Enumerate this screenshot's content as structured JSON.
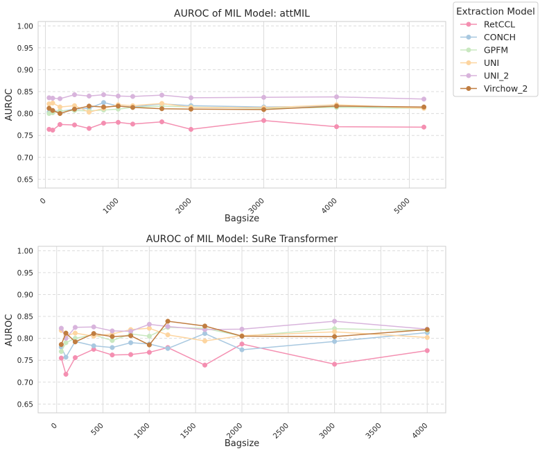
{
  "chart_data": [
    {
      "type": "line",
      "title": "AUROC of MIL Model: attMIL",
      "xlabel": "Bagsize",
      "ylabel": "AUROC",
      "xlim": [
        -100,
        5500
      ],
      "ylim": [
        0.63,
        1.01
      ],
      "xticks": [
        0,
        1000,
        2000,
        3000,
        4000,
        5000
      ],
      "xtick_labels": [
        "0",
        "1000",
        "2000",
        "3000",
        "4000",
        "5000"
      ],
      "yticks": [
        0.65,
        0.7,
        0.75,
        0.8,
        0.85,
        0.9,
        0.95,
        1.0
      ],
      "ytick_labels": [
        "0.65",
        "0.70",
        "0.75",
        "0.80",
        "0.85",
        "0.90",
        "0.95",
        "1.00"
      ],
      "grid": true,
      "series": [
        {
          "name": "RetCCL",
          "color": "#f48fb1",
          "x": [
            50,
            100,
            200,
            400,
            600,
            800,
            1000,
            1200,
            1600,
            2000,
            3000,
            4000,
            5200
          ],
          "y": [
            0.764,
            0.762,
            0.775,
            0.774,
            0.766,
            0.778,
            0.78,
            0.776,
            0.781,
            0.764,
            0.784,
            0.77,
            0.769
          ]
        },
        {
          "name": "CONCH",
          "color": "#a8c8e0",
          "x": [
            50,
            100,
            200,
            400,
            600,
            800,
            1000,
            1200,
            1600,
            2000,
            3000,
            4000,
            5200
          ],
          "y": [
            0.803,
            0.806,
            0.805,
            0.81,
            0.812,
            0.825,
            0.817,
            0.815,
            0.822,
            0.818,
            0.815,
            0.817,
            0.814
          ]
        },
        {
          "name": "GPFM",
          "color": "#c9e8c0",
          "x": [
            50,
            100,
            200,
            400,
            600,
            800,
            1000,
            1200,
            1600,
            2000,
            3000,
            4000,
            5200
          ],
          "y": [
            0.8,
            0.802,
            0.806,
            0.807,
            0.806,
            0.808,
            0.81,
            0.814,
            0.817,
            0.815,
            0.812,
            0.814,
            0.812
          ]
        },
        {
          "name": "UNI",
          "color": "#fdd5a0",
          "x": [
            50,
            100,
            200,
            400,
            600,
            800,
            1000,
            1200,
            1600,
            2000,
            3000,
            4000,
            5200
          ],
          "y": [
            0.822,
            0.824,
            0.815,
            0.818,
            0.803,
            0.812,
            0.82,
            0.818,
            0.823,
            0.814,
            0.813,
            0.82,
            0.812
          ]
        },
        {
          "name": "UNI_2",
          "color": "#d8b4dc",
          "x": [
            50,
            100,
            200,
            400,
            600,
            800,
            1000,
            1200,
            1600,
            2000,
            3000,
            4000,
            5200
          ],
          "y": [
            0.836,
            0.835,
            0.834,
            0.843,
            0.84,
            0.843,
            0.84,
            0.839,
            0.842,
            0.836,
            0.837,
            0.838,
            0.833
          ]
        },
        {
          "name": "Virchow_2",
          "color": "#c07d40",
          "x": [
            50,
            100,
            200,
            400,
            600,
            800,
            1000,
            1200,
            1600,
            2000,
            3000,
            4000,
            5200
          ],
          "y": [
            0.812,
            0.807,
            0.8,
            0.81,
            0.817,
            0.815,
            0.817,
            0.814,
            0.811,
            0.81,
            0.809,
            0.817,
            0.815
          ]
        }
      ]
    },
    {
      "type": "line",
      "title": "AUROC of MIL Model: SuRe Transformer",
      "xlabel": "Bagsize",
      "ylabel": "AUROC",
      "xlim": [
        -200,
        4200
      ],
      "ylim": [
        0.63,
        1.01
      ],
      "xticks": [
        0,
        500,
        1000,
        1500,
        2000,
        2500,
        3000,
        3500,
        4000
      ],
      "xtick_labels": [
        "0",
        "500",
        "1000",
        "1500",
        "2000",
        "2500",
        "3000",
        "3500",
        "4000"
      ],
      "yticks": [
        0.65,
        0.7,
        0.75,
        0.8,
        0.85,
        0.9,
        0.95,
        1.0
      ],
      "ytick_labels": [
        "0.65",
        "0.70",
        "0.75",
        "0.80",
        "0.85",
        "0.90",
        "0.95",
        "1.00"
      ],
      "grid": true,
      "series": [
        {
          "name": "RetCCL",
          "color": "#f48fb1",
          "x": [
            50,
            100,
            200,
            400,
            600,
            800,
            1000,
            1200,
            1600,
            2000,
            3000,
            4000
          ],
          "y": [
            0.755,
            0.718,
            0.756,
            0.775,
            0.762,
            0.763,
            0.768,
            0.779,
            0.739,
            0.787,
            0.741,
            0.772
          ]
        },
        {
          "name": "CONCH",
          "color": "#a8c8e0",
          "x": [
            50,
            100,
            200,
            400,
            600,
            800,
            1000,
            1200,
            1600,
            2000,
            3000,
            4000
          ],
          "y": [
            0.78,
            0.757,
            0.793,
            0.783,
            0.779,
            0.79,
            0.787,
            0.777,
            0.811,
            0.774,
            0.793,
            0.813
          ]
        },
        {
          "name": "GPFM",
          "color": "#c9e8c0",
          "x": [
            50,
            100,
            200,
            400,
            600,
            800,
            1000,
            1200,
            1600,
            2000,
            3000,
            4000
          ],
          "y": [
            0.77,
            0.79,
            0.8,
            0.808,
            0.795,
            0.81,
            0.805,
            0.825,
            0.823,
            0.805,
            0.822,
            0.818
          ]
        },
        {
          "name": "UNI",
          "color": "#fdd5a0",
          "x": [
            50,
            100,
            200,
            400,
            600,
            800,
            1000,
            1200,
            1600,
            2000,
            3000,
            4000
          ],
          "y": [
            0.818,
            0.806,
            0.812,
            0.805,
            0.81,
            0.82,
            0.823,
            0.808,
            0.794,
            0.806,
            0.815,
            0.802
          ]
        },
        {
          "name": "UNI_2",
          "color": "#d8b4dc",
          "x": [
            50,
            100,
            200,
            400,
            600,
            800,
            1000,
            1200,
            1600,
            2000,
            3000,
            4000
          ],
          "y": [
            0.823,
            0.8,
            0.825,
            0.826,
            0.817,
            0.816,
            0.832,
            0.827,
            0.82,
            0.821,
            0.839,
            0.821
          ]
        },
        {
          "name": "Virchow_2",
          "color": "#c07d40",
          "x": [
            50,
            100,
            200,
            400,
            600,
            800,
            1000,
            1200,
            1600,
            2000,
            3000,
            4000
          ],
          "y": [
            0.786,
            0.812,
            0.792,
            0.811,
            0.804,
            0.806,
            0.785,
            0.839,
            0.828,
            0.805,
            0.804,
            0.82
          ]
        }
      ]
    }
  ],
  "legend": {
    "title": "Extraction Model",
    "placement": "outside-top-right",
    "entries": [
      "RetCCL",
      "CONCH",
      "GPFM",
      "UNI",
      "UNI_2",
      "Virchow_2"
    ]
  }
}
